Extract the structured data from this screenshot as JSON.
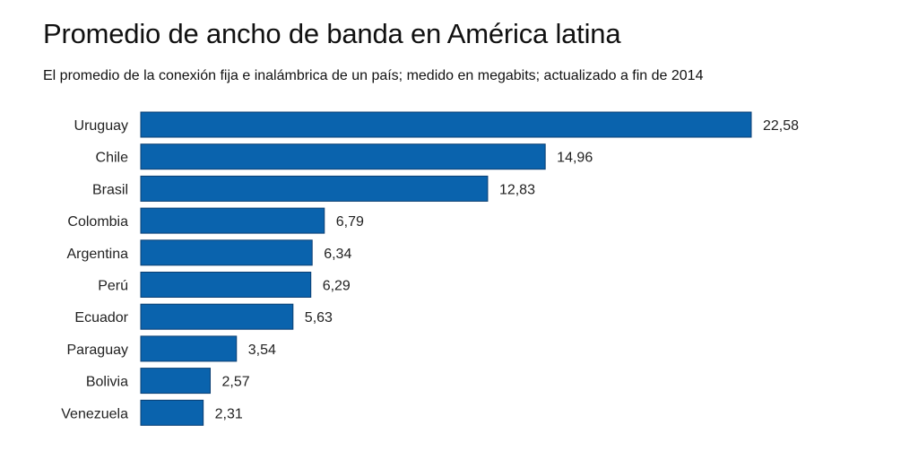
{
  "header": {
    "title": "Promedio de ancho de banda en América latina",
    "subtitle": "El promedio de la conexión fija e inalámbrica de un país; medido en megabits; actualizado a fin de 2014"
  },
  "colors": {
    "bar": "#0a63ad",
    "bar_edge": "#0b3f73",
    "text": "#222222"
  },
  "chart_data": {
    "type": "bar",
    "orientation": "horizontal",
    "title": "Promedio de ancho de banda en América latina",
    "subtitle": "El promedio de la conexión fija e inalámbrica de un país; medido en megabits; actualizado a fin de 2014",
    "categories": [
      "Uruguay",
      "Chile",
      "Brasil",
      "Colombia",
      "Argentina",
      "Perú",
      "Ecuador",
      "Paraguay",
      "Bolivia",
      "Venezuela"
    ],
    "values": [
      22.58,
      14.96,
      12.83,
      6.79,
      6.34,
      6.29,
      5.63,
      3.54,
      2.57,
      2.31
    ],
    "value_labels": [
      "22,58",
      "14,96",
      "12,83",
      "6,79",
      "6,34",
      "6,29",
      "5,63",
      "3,54",
      "2,57",
      "2,31"
    ],
    "xlim": [
      0,
      22.58
    ],
    "xlabel": "",
    "ylabel": "",
    "grid": false,
    "legend": "none"
  }
}
